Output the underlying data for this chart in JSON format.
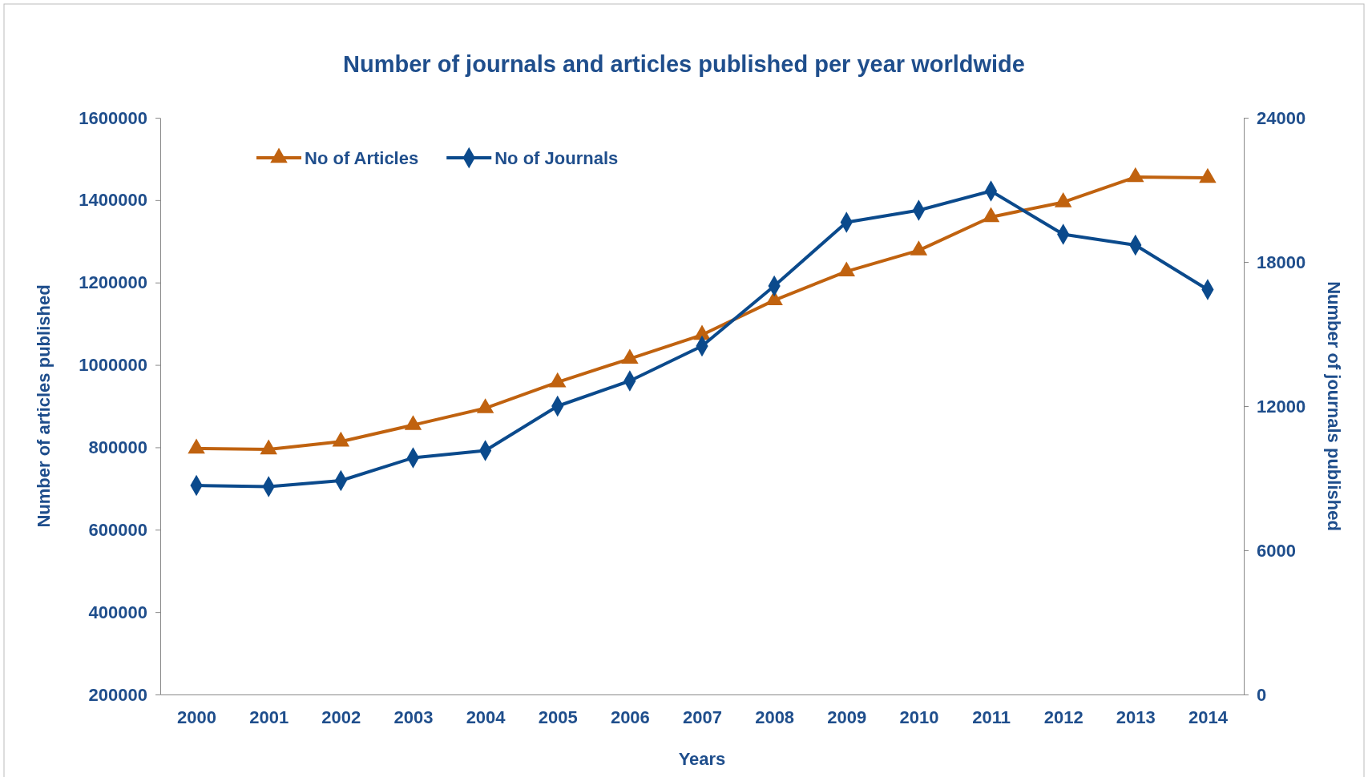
{
  "chart_data": {
    "type": "line",
    "title": "Number of journals and articles published per year worldwide",
    "xlabel": "Years",
    "ylabel": "Number of articles published",
    "y2label": "Number of journals published",
    "categories": [
      "2000",
      "2001",
      "2002",
      "2003",
      "2004",
      "2005",
      "2006",
      "2007",
      "2008",
      "2009",
      "2010",
      "2011",
      "2012",
      "2013",
      "2014"
    ],
    "series": [
      {
        "name": "No of Articles",
        "color": "#c0620f",
        "marker": "triangle",
        "values": [
          797000,
          795000,
          814000,
          854000,
          895000,
          958000,
          1015000,
          1073000,
          1157000,
          1227000,
          1278000,
          1359000,
          1395000,
          1456000,
          1454000
        ]
      },
      {
        "name": "No of Journals",
        "color": "#0b4a8c",
        "marker": "diamond",
        "axis": "y2",
        "values": [
          8700,
          8650,
          8900,
          9850,
          10150,
          12000,
          13050,
          14500,
          17000,
          19650,
          20150,
          20950,
          19150,
          18700,
          16850
        ]
      }
    ],
    "ylim": [
      200000,
      1600000
    ],
    "yticks": [
      200000,
      400000,
      600000,
      800000,
      1000000,
      1200000,
      1400000,
      1600000
    ],
    "y2lim": [
      0,
      24000
    ],
    "y2ticks": [
      0,
      6000,
      12000,
      18000,
      24000
    ],
    "legend": "top left",
    "grid": false
  }
}
